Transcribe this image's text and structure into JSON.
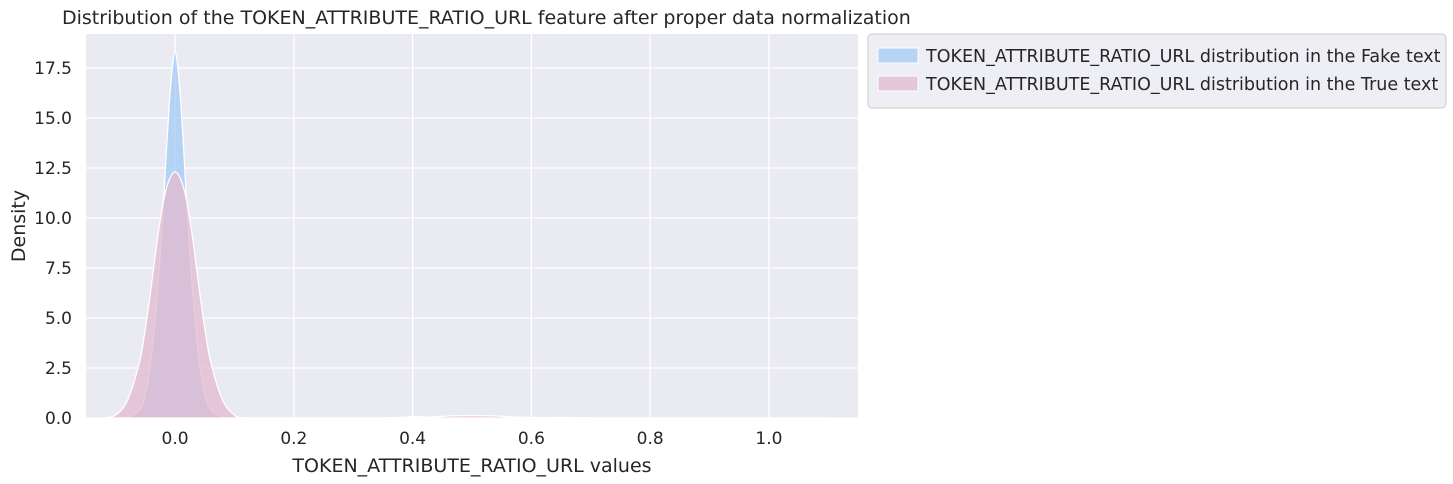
{
  "chart_data": {
    "type": "area",
    "title": "Distribution of the TOKEN_ATTRIBUTE_RATIO_URL feature after proper data normalization",
    "xlabel": "TOKEN_ATTRIBUTE_RATIO_URL values",
    "ylabel": "Density",
    "xlim": [
      -0.15,
      1.15
    ],
    "ylim": [
      0,
      19.2
    ],
    "xticks": [
      0.0,
      0.2,
      0.4,
      0.6,
      0.8,
      1.0
    ],
    "xtick_labels": [
      "0.0",
      "0.2",
      "0.4",
      "0.6",
      "0.8",
      "1.0"
    ],
    "yticks": [
      0.0,
      2.5,
      5.0,
      7.5,
      10.0,
      12.5,
      15.0,
      17.5
    ],
    "ytick_labels": [
      "0.0",
      "2.5",
      "5.0",
      "7.5",
      "10.0",
      "12.5",
      "15.0",
      "17.5"
    ],
    "grid": true,
    "legend_position": "outside-upper-right",
    "series": [
      {
        "name": "TOKEN_ATTRIBUTE_RATIO_URL distribution in the Fake text",
        "color": "#a1c9f4",
        "x": [
          -0.1,
          -0.08,
          -0.06,
          -0.05,
          -0.04,
          -0.03,
          -0.02,
          -0.015,
          -0.01,
          -0.005,
          0.0,
          0.005,
          0.01,
          0.015,
          0.02,
          0.03,
          0.04,
          0.05,
          0.06,
          0.08,
          0.1,
          0.2,
          0.35,
          0.4,
          0.45,
          0.5,
          0.6,
          0.65,
          0.7,
          0.8,
          1.0,
          1.1
        ],
        "values": [
          0.0,
          0.05,
          0.4,
          1.2,
          3.0,
          6.2,
          10.5,
          13.2,
          15.6,
          17.4,
          18.3,
          17.4,
          15.6,
          13.2,
          10.5,
          6.2,
          3.0,
          1.2,
          0.4,
          0.05,
          0.0,
          0.0,
          0.0,
          0.06,
          0.03,
          0.0,
          0.0,
          0.02,
          0.0,
          0.0,
          0.0,
          0.0
        ]
      },
      {
        "name": "TOKEN_ATTRIBUTE_RATIO_URL distribution in the True text",
        "color": "#e3b9cf",
        "x": [
          -0.12,
          -0.1,
          -0.08,
          -0.06,
          -0.05,
          -0.04,
          -0.03,
          -0.02,
          -0.01,
          0.0,
          0.01,
          0.02,
          0.03,
          0.04,
          0.05,
          0.06,
          0.08,
          0.1,
          0.12,
          0.2,
          0.35,
          0.42,
          0.46,
          0.5,
          0.54,
          0.58,
          0.62,
          0.65,
          0.68,
          0.8,
          1.0,
          1.1
        ],
        "values": [
          0.0,
          0.15,
          0.9,
          2.8,
          4.5,
          6.6,
          8.9,
          10.8,
          11.9,
          12.3,
          11.9,
          10.8,
          8.9,
          6.6,
          4.5,
          2.8,
          0.9,
          0.15,
          0.0,
          0.0,
          0.0,
          0.03,
          0.1,
          0.12,
          0.1,
          0.04,
          0.02,
          0.03,
          0.0,
          0.0,
          0.0,
          0.0
        ]
      }
    ]
  }
}
